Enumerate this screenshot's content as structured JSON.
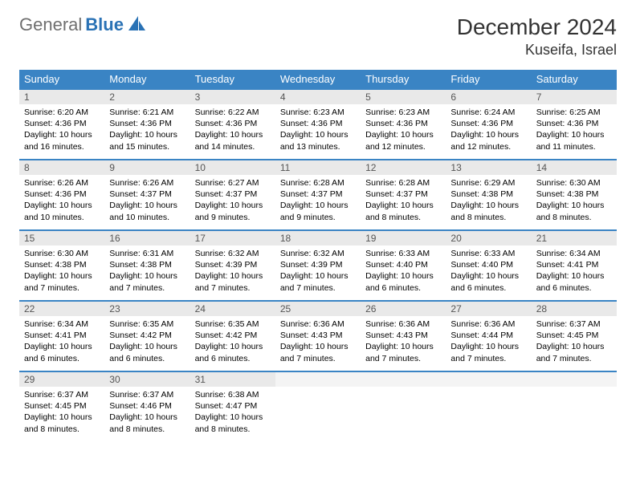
{
  "brand": {
    "part1": "General",
    "part2": "Blue",
    "accent": "#2a72b5",
    "gray": "#6f6f6f"
  },
  "title": {
    "month": "December 2024",
    "location": "Kuseifa, Israel"
  },
  "colors": {
    "header_bg": "#3a84c4",
    "header_text": "#ffffff",
    "row_border": "#3a84c4",
    "daynum_bg": "#e9e9e9",
    "daynum_empty_bg": "#f4f4f4",
    "daynum_text": "#555555"
  },
  "weekdays": [
    "Sunday",
    "Monday",
    "Tuesday",
    "Wednesday",
    "Thursday",
    "Friday",
    "Saturday"
  ],
  "weeks": [
    [
      {
        "n": "1",
        "sr": "6:20 AM",
        "ss": "4:36 PM",
        "dl": "10 hours and 16 minutes."
      },
      {
        "n": "2",
        "sr": "6:21 AM",
        "ss": "4:36 PM",
        "dl": "10 hours and 15 minutes."
      },
      {
        "n": "3",
        "sr": "6:22 AM",
        "ss": "4:36 PM",
        "dl": "10 hours and 14 minutes."
      },
      {
        "n": "4",
        "sr": "6:23 AM",
        "ss": "4:36 PM",
        "dl": "10 hours and 13 minutes."
      },
      {
        "n": "5",
        "sr": "6:23 AM",
        "ss": "4:36 PM",
        "dl": "10 hours and 12 minutes."
      },
      {
        "n": "6",
        "sr": "6:24 AM",
        "ss": "4:36 PM",
        "dl": "10 hours and 12 minutes."
      },
      {
        "n": "7",
        "sr": "6:25 AM",
        "ss": "4:36 PM",
        "dl": "10 hours and 11 minutes."
      }
    ],
    [
      {
        "n": "8",
        "sr": "6:26 AM",
        "ss": "4:36 PM",
        "dl": "10 hours and 10 minutes."
      },
      {
        "n": "9",
        "sr": "6:26 AM",
        "ss": "4:37 PM",
        "dl": "10 hours and 10 minutes."
      },
      {
        "n": "10",
        "sr": "6:27 AM",
        "ss": "4:37 PM",
        "dl": "10 hours and 9 minutes."
      },
      {
        "n": "11",
        "sr": "6:28 AM",
        "ss": "4:37 PM",
        "dl": "10 hours and 9 minutes."
      },
      {
        "n": "12",
        "sr": "6:28 AM",
        "ss": "4:37 PM",
        "dl": "10 hours and 8 minutes."
      },
      {
        "n": "13",
        "sr": "6:29 AM",
        "ss": "4:38 PM",
        "dl": "10 hours and 8 minutes."
      },
      {
        "n": "14",
        "sr": "6:30 AM",
        "ss": "4:38 PM",
        "dl": "10 hours and 8 minutes."
      }
    ],
    [
      {
        "n": "15",
        "sr": "6:30 AM",
        "ss": "4:38 PM",
        "dl": "10 hours and 7 minutes."
      },
      {
        "n": "16",
        "sr": "6:31 AM",
        "ss": "4:38 PM",
        "dl": "10 hours and 7 minutes."
      },
      {
        "n": "17",
        "sr": "6:32 AM",
        "ss": "4:39 PM",
        "dl": "10 hours and 7 minutes."
      },
      {
        "n": "18",
        "sr": "6:32 AM",
        "ss": "4:39 PM",
        "dl": "10 hours and 7 minutes."
      },
      {
        "n": "19",
        "sr": "6:33 AM",
        "ss": "4:40 PM",
        "dl": "10 hours and 6 minutes."
      },
      {
        "n": "20",
        "sr": "6:33 AM",
        "ss": "4:40 PM",
        "dl": "10 hours and 6 minutes."
      },
      {
        "n": "21",
        "sr": "6:34 AM",
        "ss": "4:41 PM",
        "dl": "10 hours and 6 minutes."
      }
    ],
    [
      {
        "n": "22",
        "sr": "6:34 AM",
        "ss": "4:41 PM",
        "dl": "10 hours and 6 minutes."
      },
      {
        "n": "23",
        "sr": "6:35 AM",
        "ss": "4:42 PM",
        "dl": "10 hours and 6 minutes."
      },
      {
        "n": "24",
        "sr": "6:35 AM",
        "ss": "4:42 PM",
        "dl": "10 hours and 6 minutes."
      },
      {
        "n": "25",
        "sr": "6:36 AM",
        "ss": "4:43 PM",
        "dl": "10 hours and 7 minutes."
      },
      {
        "n": "26",
        "sr": "6:36 AM",
        "ss": "4:43 PM",
        "dl": "10 hours and 7 minutes."
      },
      {
        "n": "27",
        "sr": "6:36 AM",
        "ss": "4:44 PM",
        "dl": "10 hours and 7 minutes."
      },
      {
        "n": "28",
        "sr": "6:37 AM",
        "ss": "4:45 PM",
        "dl": "10 hours and 7 minutes."
      }
    ],
    [
      {
        "n": "29",
        "sr": "6:37 AM",
        "ss": "4:45 PM",
        "dl": "10 hours and 8 minutes."
      },
      {
        "n": "30",
        "sr": "6:37 AM",
        "ss": "4:46 PM",
        "dl": "10 hours and 8 minutes."
      },
      {
        "n": "31",
        "sr": "6:38 AM",
        "ss": "4:47 PM",
        "dl": "10 hours and 8 minutes."
      },
      {
        "empty": true
      },
      {
        "empty": true
      },
      {
        "empty": true
      },
      {
        "empty": true
      }
    ]
  ],
  "labels": {
    "sunrise": "Sunrise:",
    "sunset": "Sunset:",
    "daylight": "Daylight:"
  }
}
